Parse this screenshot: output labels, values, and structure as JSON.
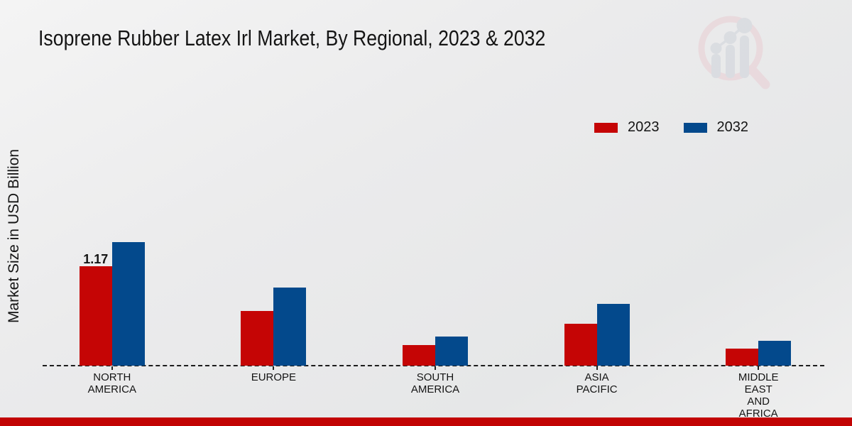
{
  "title": "Isoprene Rubber Latex Irl Market, By Regional, 2023 & 2032",
  "colors": {
    "series_2023": "#c50505",
    "series_2032": "#03498c",
    "footer_bar": "#c20404",
    "text": "#141414",
    "watermark_ring": "#e9cbd1",
    "watermark_bars": "#cdd1d9"
  },
  "legend": {
    "items": [
      {
        "label": "2023",
        "color": "#c50505"
      },
      {
        "label": "2032",
        "color": "#03498c"
      }
    ]
  },
  "footer": {},
  "chart_data": {
    "type": "bar",
    "title": "Isoprene Rubber Latex Irl Market, By Regional, 2023 & 2032",
    "xlabel": "",
    "ylabel": "Market Size in USD Billion",
    "categories": [
      "NORTH AMERICA",
      "EUROPE",
      "SOUTH AMERICA",
      "ASIA PACIFIC",
      "MIDDLE EAST AND AFRICA"
    ],
    "category_lines": [
      [
        "NORTH",
        "AMERICA"
      ],
      [
        "EUROPE"
      ],
      [
        "SOUTH",
        "AMERICA"
      ],
      [
        "ASIA",
        "PACIFIC"
      ],
      [
        "MIDDLE",
        "EAST",
        "AND",
        "AFRICA"
      ]
    ],
    "series": [
      {
        "name": "2023",
        "color": "#c50505",
        "values": [
          1.17,
          0.64,
          0.24,
          0.49,
          0.2
        ]
      },
      {
        "name": "2032",
        "color": "#03498c",
        "values": [
          1.45,
          0.92,
          0.34,
          0.73,
          0.29
        ]
      }
    ],
    "bar_labels": [
      {
        "category_index": 0,
        "series_index": 0,
        "text": "1.17"
      }
    ],
    "ylim": [
      0,
      1.6
    ],
    "y_axis_ticks_visible": false,
    "grid": false,
    "baseline_style": "dashed",
    "legend_position": "top-right"
  }
}
